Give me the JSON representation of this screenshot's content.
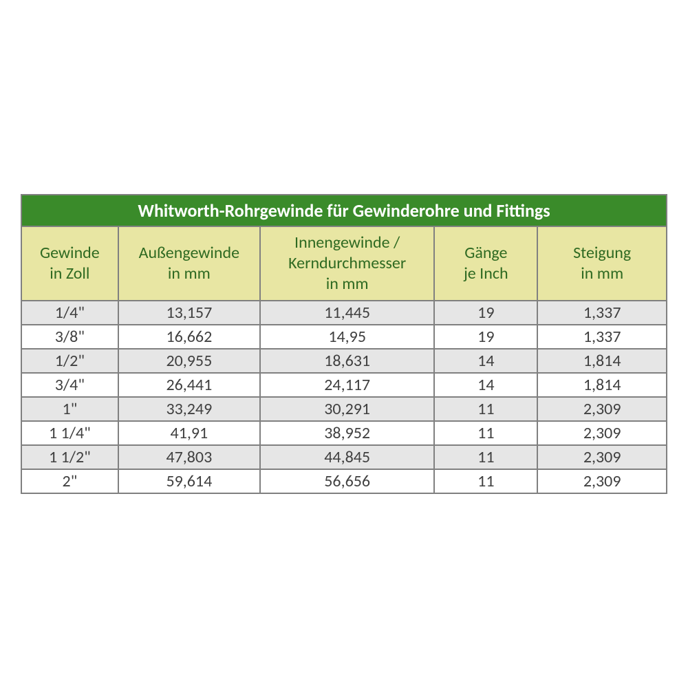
{
  "table": {
    "title": "Whitworth-Rohrgewinde für Gewinderohre und Fittings",
    "title_bg": "#3a8b2a",
    "title_color": "#ffffff",
    "title_fontsize": 26,
    "header_bg": "#e8e6a3",
    "header_color": "#2f6a22",
    "header_fontsize": 24,
    "body_fontsize": 24,
    "body_color": "#404040",
    "border_color": "#808080",
    "row_odd_bg": "#e6e6e6",
    "row_even_bg": "#ffffff",
    "background": "#ffffff",
    "col_widths_pct": [
      15,
      22,
      27,
      16,
      20
    ],
    "columns": [
      {
        "line1": "Gewinde",
        "line2": "in Zoll"
      },
      {
        "line1": "Außengewinde",
        "line2": "in mm"
      },
      {
        "line1": "Innengewinde /",
        "line2": "Kerndurchmesser",
        "line3": "in mm"
      },
      {
        "line1": "Gänge",
        "line2": "je Inch"
      },
      {
        "line1": "Steigung",
        "line2": "in mm"
      }
    ],
    "rows": [
      [
        "1/4\"",
        "13,157",
        "11,445",
        "19",
        "1,337"
      ],
      [
        "3/8\"",
        "16,662",
        "14,95",
        "19",
        "1,337"
      ],
      [
        "1/2\"",
        "20,955",
        "18,631",
        "14",
        "1,814"
      ],
      [
        "3/4\"",
        "26,441",
        "24,117",
        "14",
        "1,814"
      ],
      [
        "1\"",
        "33,249",
        "30,291",
        "11",
        "2,309"
      ],
      [
        "1 1/4\"",
        "41,91",
        "38,952",
        "11",
        "2,309"
      ],
      [
        "1 1/2\"",
        "47,803",
        "44,845",
        "11",
        "2,309"
      ],
      [
        "2\"",
        "59,614",
        "56,656",
        "11",
        "2,309"
      ]
    ]
  }
}
